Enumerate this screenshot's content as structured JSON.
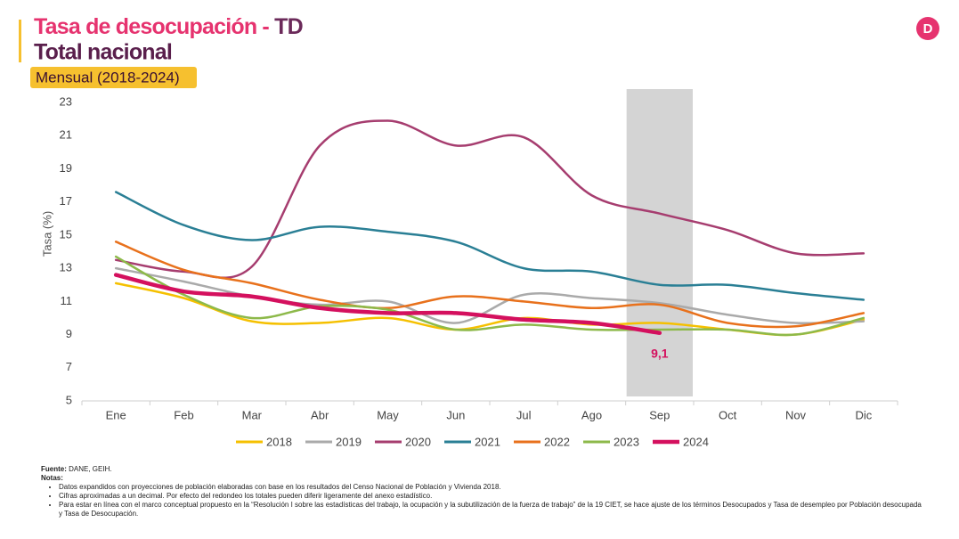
{
  "header": {
    "title": "Tasa de desocupación - ",
    "title_accent": "TD",
    "subtitle": "Total nacional",
    "badge": "Mensual (2018-2024)"
  },
  "chart_data": {
    "type": "line",
    "y_label": "Tasa (%)",
    "categories": [
      "Ene",
      "Feb",
      "Mar",
      "Abr",
      "May",
      "Jun",
      "Jul",
      "Ago",
      "Sep",
      "Oct",
      "Nov",
      "Dic"
    ],
    "ylim": [
      5,
      23
    ],
    "yticks": [
      5,
      7,
      9,
      11,
      13,
      15,
      17,
      19,
      21,
      23
    ],
    "highlight": "Sep",
    "series": [
      {
        "name": "2018",
        "color": "#f5c000",
        "values": [
          12.1,
          11.2,
          9.8,
          9.7,
          10.0,
          9.3,
          10.0,
          9.6,
          9.7,
          9.3,
          9.0,
          9.9
        ]
      },
      {
        "name": "2019",
        "color": "#aaaaaa",
        "values": [
          13.0,
          12.2,
          11.3,
          10.8,
          11.0,
          9.7,
          11.4,
          11.2,
          10.9,
          10.2,
          9.7,
          9.8
        ]
      },
      {
        "name": "2020",
        "color": "#a63d6f",
        "values": [
          13.5,
          12.8,
          13.1,
          20.4,
          21.9,
          20.4,
          20.9,
          17.4,
          16.3,
          15.3,
          13.9,
          13.9
        ]
      },
      {
        "name": "2021",
        "color": "#2a7f95",
        "values": [
          17.6,
          15.6,
          14.7,
          15.5,
          15.2,
          14.6,
          13.0,
          12.8,
          12.0,
          12.0,
          11.5,
          11.1
        ]
      },
      {
        "name": "2022",
        "color": "#e8711c",
        "values": [
          14.6,
          12.9,
          12.1,
          11.1,
          10.6,
          11.3,
          11.0,
          10.6,
          10.8,
          9.7,
          9.5,
          10.3
        ]
      },
      {
        "name": "2023",
        "color": "#8db94a",
        "values": [
          13.7,
          11.4,
          10.0,
          10.7,
          10.5,
          9.3,
          9.6,
          9.3,
          9.3,
          9.3,
          9.0,
          10.0
        ]
      },
      {
        "name": "2024",
        "color": "#d4105e",
        "width": 4.5,
        "values": [
          12.6,
          11.6,
          11.3,
          10.6,
          10.3,
          10.3,
          9.9,
          9.7,
          9.1,
          null,
          null,
          null
        ],
        "value_labels": [
          null,
          null,
          null,
          null,
          null,
          null,
          null,
          null,
          "9,1",
          null,
          null,
          null
        ]
      }
    ]
  },
  "footer": {
    "source_label": "Fuente:",
    "source": " DANE, GEIH.",
    "notes_label": "Notas:",
    "notes": [
      "Datos expandidos con proyecciones de población elaboradas con base en los resultados del Censo Nacional de Población y Vivienda 2018.",
      "Cifras aproximadas a un decimal. Por efecto del redondeo los totales pueden diferir ligeramente del anexo estadístico.",
      "Para estar en línea con el marco conceptual propuesto en la “Resolución I sobre las estadísticas del trabajo, la ocupación y la subutilización de la fuerza de trabajo” de la 19 CIET, se hace ajuste de los términos Desocupados y Tasa de desempleo por Población desocupada y Tasa de Desocupación."
    ]
  }
}
